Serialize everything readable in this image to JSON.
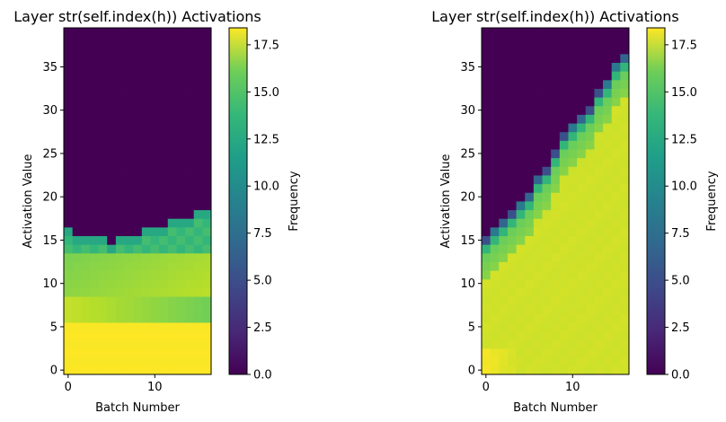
{
  "chart_data": [
    {
      "type": "heatmap",
      "title": "Layer str(self.index(h)) Activations",
      "xlabel": "Batch Number",
      "ylabel": "Activation Value",
      "colorbar_label": "Frequency",
      "colormap": "viridis",
      "xlim": [
        -0.5,
        16.5
      ],
      "ylim": [
        -0.5,
        39.5
      ],
      "x_ticks": [
        0,
        10
      ],
      "y_ticks": [
        0,
        5,
        10,
        15,
        20,
        25,
        30,
        35
      ],
      "color_range": [
        0,
        18.4
      ],
      "colorbar_ticks": [
        "0.0",
        "2.5",
        "5.0",
        "7.5",
        "10.0",
        "12.5",
        "15.0",
        "17.5"
      ],
      "columns": 17,
      "rows": 40,
      "description_values": "frequency per (batch, activation-bin) cell, piecewise model estimated from the image",
      "profile": {
        "top_boundary_by_batch": [
          16,
          15,
          15,
          15,
          15,
          14,
          15,
          15,
          15,
          16,
          16,
          16,
          17,
          17,
          17,
          18,
          18
        ],
        "bright_below": 6,
        "mid_band": [
          9,
          13
        ],
        "values": {
          "low": 18.4,
          "lower_mid": 15.2,
          "upper_mid": 12.8,
          "edge": 11.0
        }
      }
    },
    {
      "type": "heatmap",
      "title": "Layer str(self.index(h)) Activations",
      "xlabel": "Batch Number",
      "ylabel": "Activation Value",
      "colorbar_label": "Frequency",
      "colormap": "viridis",
      "xlim": [
        -0.5,
        16.5
      ],
      "ylim": [
        -0.5,
        39.5
      ],
      "x_ticks": [
        0,
        10
      ],
      "y_ticks": [
        0,
        5,
        10,
        15,
        20,
        25,
        30,
        35
      ],
      "color_range": [
        0,
        18.4
      ],
      "colorbar_ticks": [
        "0.0",
        "2.5",
        "5.0",
        "7.5",
        "10.0",
        "12.5",
        "15.0",
        "17.5"
      ],
      "columns": 17,
      "rows": 40,
      "description_values": "frequency per (batch, activation-bin) cell, piecewise model estimated from the image",
      "profile": {
        "top_boundary_by_batch": [
          15,
          16,
          17,
          18,
          19,
          20,
          22,
          23,
          25,
          27,
          28,
          29,
          30,
          32,
          33,
          35,
          36
        ],
        "values": {
          "core": 17.2,
          "mid": 15.0,
          "edge": 11.5,
          "tip": 4.5
        }
      }
    }
  ]
}
